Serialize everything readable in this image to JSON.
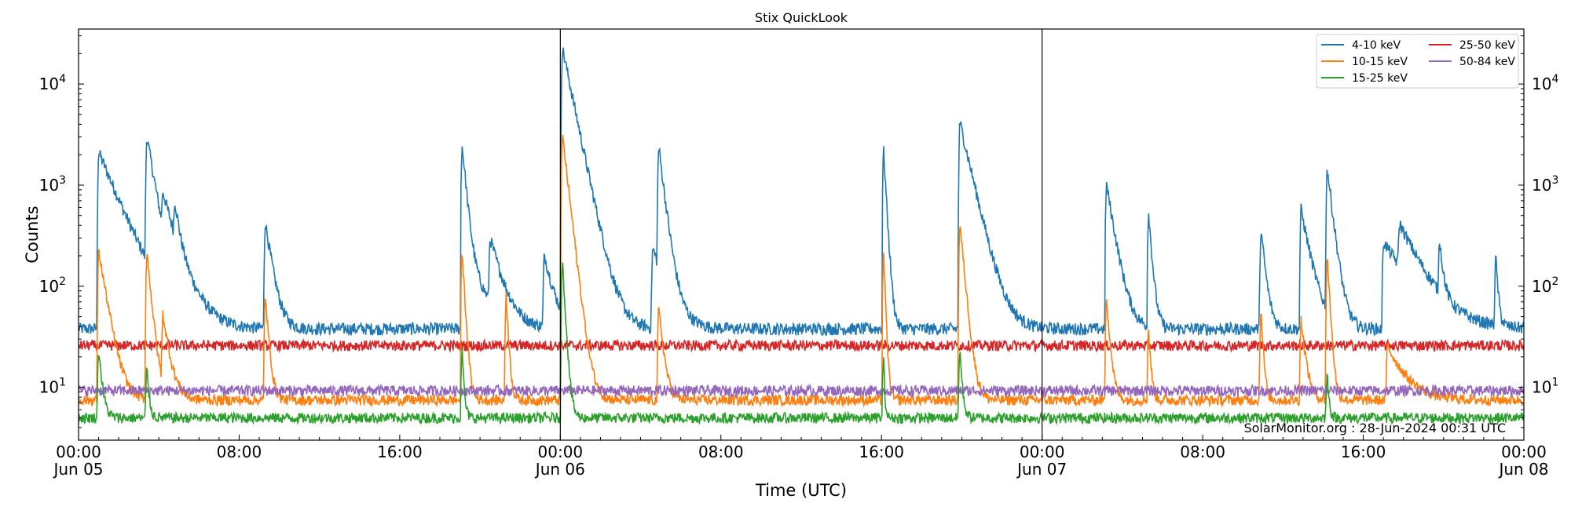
{
  "chart_data": {
    "type": "line",
    "title": "Stix QuickLook",
    "xlabel": "Time (UTC)",
    "ylabel": "Counts",
    "yscale": "log",
    "ylim": [
      3,
      35000
    ],
    "xlim_hours": [
      0,
      72
    ],
    "x_ticks": [
      {
        "hour": 0,
        "time": "00:00",
        "date": "Jun 05"
      },
      {
        "hour": 8,
        "time": "08:00",
        "date": ""
      },
      {
        "hour": 16,
        "time": "16:00",
        "date": ""
      },
      {
        "hour": 24,
        "time": "00:00",
        "date": "Jun 06"
      },
      {
        "hour": 32,
        "time": "08:00",
        "date": ""
      },
      {
        "hour": 40,
        "time": "16:00",
        "date": ""
      },
      {
        "hour": 48,
        "time": "00:00",
        "date": "Jun 07"
      },
      {
        "hour": 56,
        "time": "08:00",
        "date": ""
      },
      {
        "hour": 64,
        "time": "16:00",
        "date": ""
      },
      {
        "hour": 72,
        "time": "00:00",
        "date": "Jun 08"
      }
    ],
    "y_ticks": [
      {
        "value": 10,
        "base": "10",
        "exp": "1"
      },
      {
        "value": 100,
        "base": "10",
        "exp": "2"
      },
      {
        "value": 1000,
        "base": "10",
        "exp": "3"
      },
      {
        "value": 10000,
        "base": "10",
        "exp": "4"
      }
    ],
    "day_boundaries_hours": [
      24,
      48
    ],
    "legend_position": "top-right",
    "grid": false,
    "series": [
      {
        "name": "4-10 keV",
        "color": "#1f77b4",
        "baseline": 38,
        "peaks": [
          {
            "t": 1.0,
            "peak": 2100,
            "decay": 0.9
          },
          {
            "t": 3.4,
            "peak": 2900,
            "decay": 0.35
          },
          {
            "t": 4.2,
            "peak": 480,
            "decay": 0.7
          },
          {
            "t": 4.8,
            "peak": 380,
            "decay": 0.2
          },
          {
            "t": 9.3,
            "peak": 400,
            "decay": 0.3
          },
          {
            "t": 20.5,
            "peak": 230,
            "decay": 0.5
          },
          {
            "t": 19.2,
            "peak": 170,
            "decay": 0.8
          },
          {
            "t": 19.1,
            "peak": 2500,
            "decay": 0.18
          },
          {
            "t": 23.2,
            "peak": 170,
            "decay": 0.4
          },
          {
            "t": 24.1,
            "peak": 23000,
            "decay": 0.45
          },
          {
            "t": 28.9,
            "peak": 2300,
            "decay": 0.25
          },
          {
            "t": 28.6,
            "peak": 200,
            "decay": 0.6
          },
          {
            "t": 40.1,
            "peak": 2300,
            "decay": 0.12
          },
          {
            "t": 43.9,
            "peak": 4200,
            "decay": 0.5
          },
          {
            "t": 51.2,
            "peak": 1000,
            "decay": 0.35
          },
          {
            "t": 53.3,
            "peak": 520,
            "decay": 0.15
          },
          {
            "t": 58.9,
            "peak": 330,
            "decay": 0.2
          },
          {
            "t": 60.9,
            "peak": 540,
            "decay": 0.4
          },
          {
            "t": 62.2,
            "peak": 1450,
            "decay": 0.25
          },
          {
            "t": 65.0,
            "peak": 240,
            "decay": 1.2
          },
          {
            "t": 65.8,
            "peak": 260,
            "decay": 0.9
          },
          {
            "t": 67.8,
            "peak": 210,
            "decay": 0.15
          },
          {
            "t": 70.6,
            "peak": 160,
            "decay": 0.1
          }
        ]
      },
      {
        "name": "10-15 keV",
        "color": "#ff7f0e",
        "baseline": 7.5,
        "peaks": [
          {
            "t": 1.0,
            "peak": 220,
            "decay": 0.35
          },
          {
            "t": 3.4,
            "peak": 220,
            "decay": 0.2
          },
          {
            "t": 4.2,
            "peak": 42,
            "decay": 0.3
          },
          {
            "t": 9.3,
            "peak": 75,
            "decay": 0.15
          },
          {
            "t": 19.1,
            "peak": 230,
            "decay": 0.12
          },
          {
            "t": 21.3,
            "peak": 80,
            "decay": 0.1
          },
          {
            "t": 24.1,
            "peak": 3200,
            "decay": 0.25
          },
          {
            "t": 28.9,
            "peak": 55,
            "decay": 0.2
          },
          {
            "t": 40.1,
            "peak": 220,
            "decay": 0.08
          },
          {
            "t": 43.9,
            "peak": 420,
            "decay": 0.2
          },
          {
            "t": 51.2,
            "peak": 75,
            "decay": 0.15
          },
          {
            "t": 53.3,
            "peak": 32,
            "decay": 0.1
          },
          {
            "t": 58.9,
            "peak": 55,
            "decay": 0.1
          },
          {
            "t": 60.9,
            "peak": 40,
            "decay": 0.2
          },
          {
            "t": 62.2,
            "peak": 200,
            "decay": 0.12
          },
          {
            "t": 65.2,
            "peak": 18,
            "decay": 0.8
          }
        ]
      },
      {
        "name": "15-25 keV",
        "color": "#2ca02c",
        "baseline": 5.0,
        "peaks": [
          {
            "t": 1.0,
            "peak": 20,
            "decay": 0.15
          },
          {
            "t": 3.4,
            "peak": 11,
            "decay": 0.1
          },
          {
            "t": 19.1,
            "peak": 20,
            "decay": 0.08
          },
          {
            "t": 24.1,
            "peak": 180,
            "decay": 0.12
          },
          {
            "t": 40.1,
            "peak": 16,
            "decay": 0.05
          },
          {
            "t": 43.9,
            "peak": 20,
            "decay": 0.1
          },
          {
            "t": 62.2,
            "peak": 9,
            "decay": 0.08
          }
        ]
      },
      {
        "name": "25-50 keV",
        "color": "#d62728",
        "baseline": 26,
        "peaks": []
      },
      {
        "name": "50-84 keV",
        "color": "#9467bd",
        "baseline": 9.3,
        "peaks": []
      }
    ]
  },
  "credit": "SolarMonitor.org : 28-Jun-2024 00:31 UTC"
}
